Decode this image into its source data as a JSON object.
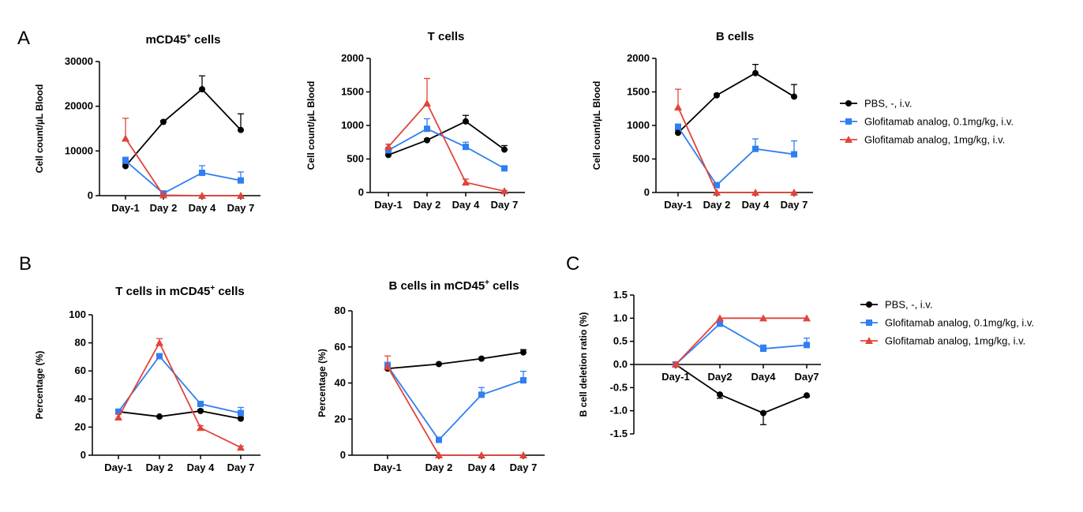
{
  "panel_labels": [
    "A",
    "B",
    "C"
  ],
  "series_styles": [
    {
      "color": "#000000",
      "marker": "circle"
    },
    {
      "color": "#2f7ff0",
      "marker": "square"
    },
    {
      "color": "#e2443b",
      "marker": "triangle"
    }
  ],
  "legend": {
    "entries": [
      "PBS, -, i.v.",
      "Glofitamab analog, 0.1mg/kg, i.v.",
      "Glofitamab analog, 1mg/kg, i.v."
    ]
  },
  "chart_data": [
    {
      "type": "line",
      "title": "mCD45",
      "title_superscript": "+",
      "title_suffix": " cells",
      "ylabel": "Cell count/µL Blood",
      "categories": [
        "Day-1",
        "Day 2",
        "Day 4",
        "Day 7"
      ],
      "ylim": [
        0,
        30000
      ],
      "yticks": [
        0,
        10000,
        20000,
        30000
      ],
      "series": [
        {
          "name": "PBS, -, i.v.",
          "values": [
            6600,
            16500,
            23800,
            14700
          ],
          "errors": [
            500,
            300,
            3000,
            3600
          ]
        },
        {
          "name": "Glofitamab analog, 0.1mg/kg, i.v.",
          "values": [
            7800,
            500,
            5100,
            3400
          ],
          "errors": [
            800,
            200,
            1600,
            1900
          ]
        },
        {
          "name": "Glofitamab analog, 1mg/kg, i.v.",
          "values": [
            12800,
            100,
            0,
            0
          ],
          "errors": [
            4500,
            100,
            0,
            0
          ]
        }
      ]
    },
    {
      "type": "line",
      "title": "T cells",
      "title_superscript": "",
      "title_suffix": "",
      "ylabel": "Cell count/µL Blood",
      "categories": [
        "Day-1",
        "Day 2",
        "Day 4",
        "Day 7"
      ],
      "ylim": [
        0,
        2000
      ],
      "yticks": [
        0,
        500,
        1000,
        1500,
        2000
      ],
      "series": [
        {
          "name": "PBS, -, i.v.",
          "values": [
            560,
            780,
            1060,
            640
          ],
          "errors": [
            40,
            20,
            90,
            60
          ]
        },
        {
          "name": "Glofitamab analog, 0.1mg/kg, i.v.",
          "values": [
            630,
            950,
            680,
            360
          ],
          "errors": [
            40,
            150,
            70,
            30
          ]
        },
        {
          "name": "Glofitamab analog, 1mg/kg, i.v.",
          "values": [
            680,
            1330,
            150,
            20
          ],
          "errors": [
            40,
            370,
            50,
            10
          ]
        }
      ]
    },
    {
      "type": "line",
      "title": "B cells",
      "title_superscript": "",
      "title_suffix": "",
      "ylabel": "Cell count/µL Blood",
      "categories": [
        "Day-1",
        "Day 2",
        "Day 4",
        "Day 7"
      ],
      "ylim": [
        0,
        2000
      ],
      "yticks": [
        0,
        500,
        1000,
        1500,
        2000
      ],
      "series": [
        {
          "name": "PBS, -, i.v.",
          "values": [
            890,
            1450,
            1780,
            1430
          ],
          "errors": [
            40,
            20,
            130,
            180
          ]
        },
        {
          "name": "Glofitamab analog, 0.1mg/kg, i.v.",
          "values": [
            980,
            110,
            650,
            570
          ],
          "errors": [
            40,
            20,
            150,
            200
          ]
        },
        {
          "name": "Glofitamab analog, 1mg/kg, i.v.",
          "values": [
            1270,
            0,
            0,
            0
          ],
          "errors": [
            270,
            0,
            0,
            0
          ]
        }
      ]
    },
    {
      "type": "line",
      "title": "T cells in mCD45",
      "title_superscript": "+",
      "title_suffix": " cells",
      "ylabel": "Percentage (%)",
      "categories": [
        "Day-1",
        "Day 2",
        "Day 4",
        "Day 7"
      ],
      "ylim": [
        0,
        100
      ],
      "yticks": [
        0,
        20,
        40,
        60,
        80,
        100
      ],
      "series": [
        {
          "name": "PBS, -, i.v.",
          "values": [
            31,
            27.5,
            31.5,
            26
          ],
          "errors": [
            1,
            0.5,
            1,
            1
          ]
        },
        {
          "name": "Glofitamab analog, 0.1mg/kg, i.v.",
          "values": [
            31,
            70.5,
            36.5,
            30
          ],
          "errors": [
            1.5,
            1,
            1,
            4
          ]
        },
        {
          "name": "Glofitamab analog, 1mg/kg, i.v.",
          "values": [
            27,
            80,
            19.5,
            5.5
          ],
          "errors": [
            2.5,
            3,
            1.5,
            1
          ]
        }
      ]
    },
    {
      "type": "line",
      "title": "B cells in mCD45",
      "title_superscript": "+",
      "title_suffix": " cells",
      "ylabel": "Percentage (%)",
      "categories": [
        "Day-1",
        "Day 2",
        "Day 4",
        "Day 7"
      ],
      "ylim": [
        0,
        80
      ],
      "yticks": [
        0,
        20,
        40,
        60,
        80
      ],
      "series": [
        {
          "name": "PBS, -, i.v.",
          "values": [
            48,
            50.5,
            53.5,
            57
          ],
          "errors": [
            1,
            0.5,
            0.5,
            1.5
          ]
        },
        {
          "name": "Glofitamab analog, 0.1mg/kg, i.v.",
          "values": [
            49.5,
            8.5,
            33.5,
            41.5
          ],
          "errors": [
            2,
            1.5,
            4,
            5
          ]
        },
        {
          "name": "Glofitamab analog, 1mg/kg, i.v.",
          "values": [
            49,
            0,
            0,
            0
          ],
          "errors": [
            6,
            0,
            0,
            0
          ]
        }
      ]
    },
    {
      "type": "line",
      "title": "",
      "title_superscript": "",
      "title_suffix": "",
      "ylabel": "B cell deletion ratio (%)",
      "categories": [
        "Day-1",
        "Day2",
        "Day4",
        "Day7"
      ],
      "ylim": [
        -1.5,
        1.5
      ],
      "yticks": [
        -1.5,
        -1.0,
        -0.5,
        0.0,
        0.5,
        1.0,
        1.5
      ],
      "xaxis_at_zero": true,
      "series": [
        {
          "name": "PBS, -, i.v.",
          "values": [
            0,
            -0.65,
            -1.05,
            -0.67
          ],
          "errors": [
            0.03,
            0.08,
            0.25,
            0.03
          ]
        },
        {
          "name": "Glofitamab analog, 0.1mg/kg, i.v.",
          "values": [
            0,
            0.88,
            0.34,
            0.42
          ],
          "errors": [
            0.03,
            0.05,
            0.08,
            0.15
          ]
        },
        {
          "name": "Glofitamab analog, 1mg/kg, i.v.",
          "values": [
            0,
            1.0,
            1.0,
            1.0
          ],
          "errors": [
            0.03,
            0,
            0,
            0
          ]
        }
      ]
    }
  ]
}
